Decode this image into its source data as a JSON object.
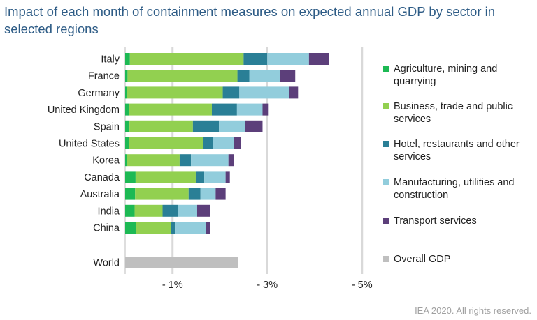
{
  "title": "Impact of each month of containment measures on expected annual GDP by sector in selected regions",
  "footer": "IEA 2020. All rights reserved.",
  "colors": {
    "agriculture": "#1db954",
    "business": "#92d050",
    "hotel": "#2a7f96",
    "manufacturing": "#92cddc",
    "transport": "#5c3f7a",
    "overall": "#bfbfbf",
    "gridline": "#d9d9d9"
  },
  "chart_data": {
    "type": "bar",
    "orientation": "horizontal",
    "stacked": true,
    "title": "Impact of each month of containment measures on expected annual GDP by sector in selected regions",
    "unit": "%",
    "xlim": [
      0,
      -5.3
    ],
    "ticks": [
      -1,
      -3,
      -5
    ],
    "tick_labels": [
      "- 1%",
      "- 3%",
      "- 5%"
    ],
    "grid": true,
    "legend_position": "right",
    "categories": [
      "Italy",
      "France",
      "Germany",
      "United Kingdom",
      "Spain",
      "United States",
      "Korea",
      "Canada",
      "Australia",
      "India",
      "China",
      "World"
    ],
    "series": [
      {
        "name": "Agriculture, mining and quarrying",
        "color_key": "agriculture",
        "values": [
          -0.1,
          -0.05,
          -0.03,
          -0.08,
          -0.09,
          -0.08,
          -0.03,
          -0.22,
          -0.21,
          -0.2,
          -0.23,
          0
        ]
      },
      {
        "name": "Business, trade and public services",
        "color_key": "business",
        "values": [
          -2.4,
          -2.32,
          -2.03,
          -1.75,
          -1.34,
          -1.56,
          -1.12,
          -1.27,
          -1.13,
          -0.59,
          -0.73,
          0
        ]
      },
      {
        "name": "Hotel, restaurants and other services",
        "color_key": "hotel",
        "values": [
          -0.5,
          -0.25,
          -0.35,
          -0.53,
          -0.55,
          -0.21,
          -0.24,
          -0.18,
          -0.25,
          -0.33,
          -0.09,
          0
        ]
      },
      {
        "name": "Manufacturing, utilities and construction",
        "color_key": "manufacturing",
        "values": [
          -0.88,
          -0.65,
          -1.05,
          -0.54,
          -0.55,
          -0.44,
          -0.79,
          -0.45,
          -0.32,
          -0.4,
          -0.66,
          0
        ]
      },
      {
        "name": "Transport services",
        "color_key": "transport",
        "values": [
          -0.42,
          -0.32,
          -0.19,
          -0.13,
          -0.37,
          -0.15,
          -0.11,
          -0.09,
          -0.21,
          -0.27,
          -0.09,
          0
        ]
      },
      {
        "name": "Overall GDP",
        "color_key": "overall",
        "values": [
          0,
          0,
          0,
          0,
          0,
          0,
          0,
          0,
          0,
          0,
          0,
          -2.38
        ]
      }
    ]
  }
}
